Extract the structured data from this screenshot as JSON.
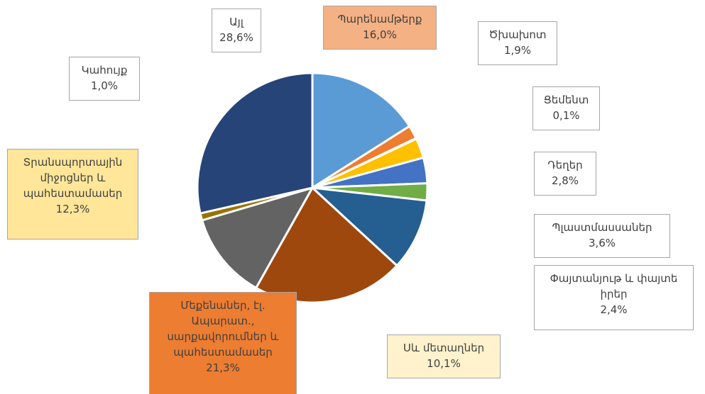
{
  "chart_data": {
    "type": "pie",
    "categories": [
      "Պարենամթերք",
      "Ծխախոտ",
      "Ցեմենտ",
      "Դեղեր",
      "Պլաստմասսաներ",
      "Փայտանյութ և փայտե իրեր",
      "Սև մետաղներ",
      "Մեքենաներ, էլ. Ապարատ., սարքավորումներ և պահեստամասեր",
      "Տրանսպորտային միջոցներ և պահեստամասեր",
      "Կահույք",
      "Այլ"
    ],
    "values": [
      16.0,
      1.9,
      0.1,
      2.8,
      3.6,
      2.4,
      10.1,
      21.3,
      12.3,
      1.0,
      28.6
    ],
    "value_labels": [
      "16,0%",
      "1,9%",
      "0,1%",
      "2,8%",
      "3,6%",
      "2,4%",
      "10,1%",
      "21,3%",
      "12,3%",
      "1,0%",
      "28,6%"
    ],
    "colors": [
      "#5b9bd5",
      "#ed7d31",
      "#a5a5a5",
      "#ffc000",
      "#4472c4",
      "#70ad47",
      "#255e91",
      "#9e480e",
      "#636363",
      "#997300",
      "#264478"
    ],
    "label_fills": [
      "#f4b183",
      "#ffffff",
      "#ffffff",
      "#ffffff",
      "#ffffff",
      "#ffffff",
      "#fff2cc",
      "#ed7d31",
      "#ffe699",
      "#ffffff",
      "#ffffff"
    ]
  }
}
